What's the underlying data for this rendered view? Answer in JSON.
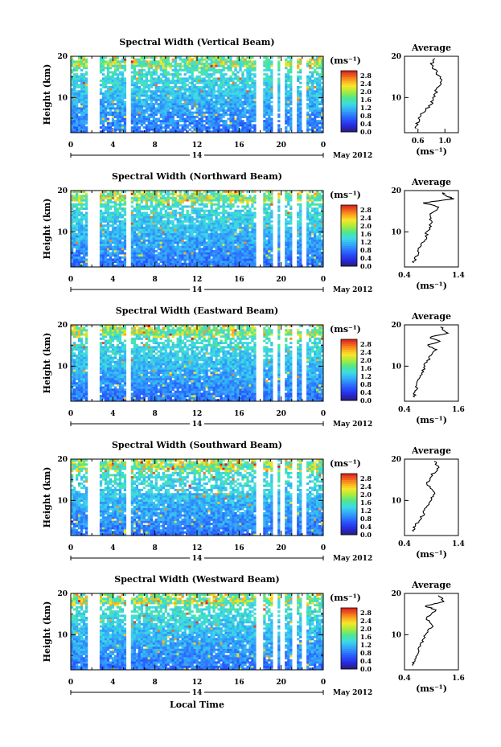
{
  "figure": {
    "month_label": "May 2012",
    "day_label": "14",
    "xlabel": "Local Time",
    "ylabel": "Height (km)",
    "unit_label": "(ms⁻¹)",
    "average_title": "Average",
    "average_xlabel": "(ms⁻¹)",
    "colorbar_ticks": [
      "2.8",
      "2.4",
      "2.0",
      "1.6",
      "1.2",
      "0.8",
      "0.4",
      "0.0"
    ],
    "x_ticks": [
      "0",
      "4",
      "8",
      "12",
      "16",
      "20",
      "0"
    ],
    "y_ticks": [
      "20",
      "10"
    ]
  },
  "chart_data": [
    {
      "type": "heatmap",
      "title": "Spectral Width (Vertical Beam)",
      "xlabel": "Local Time",
      "ylabel": "Height (km)",
      "xlim": [
        0,
        24
      ],
      "ylim": [
        1.5,
        20
      ],
      "zlim": [
        0.0,
        2.8
      ],
      "colorbar_unit": "ms⁻¹",
      "data_gaps_hours": [
        [
          1.6,
          2.8
        ],
        [
          5.3,
          5.8
        ],
        [
          17.6,
          18.2
        ],
        [
          19.2,
          19.6
        ],
        [
          19.9,
          20.4
        ],
        [
          21.0,
          21.5
        ],
        [
          21.9,
          22.4
        ]
      ],
      "average_profile": {
        "title": "Average",
        "xlabel": "(ms⁻¹)",
        "xlim": [
          0.4,
          1.2
        ],
        "x_ticks": [
          "0.6",
          "1.0"
        ],
        "height_km": [
          2.5,
          4,
          6,
          8,
          10,
          12,
          14,
          16,
          18,
          19.5
        ],
        "width_ms": [
          0.55,
          0.6,
          0.65,
          0.78,
          0.84,
          0.88,
          0.95,
          0.88,
          0.8,
          0.85
        ]
      }
    },
    {
      "type": "heatmap",
      "title": "Spectral Width (Northward Beam)",
      "xlabel": "Local Time",
      "ylabel": "Height (km)",
      "xlim": [
        0,
        24
      ],
      "ylim": [
        1.5,
        20
      ],
      "zlim": [
        0.0,
        2.8
      ],
      "colorbar_unit": "ms⁻¹",
      "data_gaps_hours": [
        [
          1.6,
          2.8
        ],
        [
          5.3,
          5.8
        ],
        [
          17.6,
          18.2
        ],
        [
          19.2,
          19.6
        ],
        [
          19.9,
          20.4
        ],
        [
          21.0,
          21.5
        ],
        [
          21.9,
          22.4
        ]
      ],
      "average_profile": {
        "title": "Average",
        "xlabel": "(ms⁻¹)",
        "xlim": [
          0.4,
          1.4
        ],
        "x_ticks": [
          "0.4",
          "1.4"
        ],
        "height_km": [
          2.5,
          4,
          6,
          8,
          10,
          12,
          14,
          16,
          17,
          18,
          19,
          19.5
        ],
        "width_ms": [
          0.55,
          0.62,
          0.68,
          0.78,
          0.82,
          0.9,
          0.85,
          1.05,
          0.75,
          1.3,
          1.15,
          1.1
        ]
      }
    },
    {
      "type": "heatmap",
      "title": "Spectral Width (Eastward Beam)",
      "xlabel": "Local Time",
      "ylabel": "Height (km)",
      "xlim": [
        0,
        24
      ],
      "ylim": [
        1.5,
        20
      ],
      "zlim": [
        0.0,
        2.8
      ],
      "colorbar_unit": "ms⁻¹",
      "data_gaps_hours": [
        [
          1.6,
          2.8
        ],
        [
          5.3,
          5.8
        ],
        [
          17.6,
          18.2
        ],
        [
          19.2,
          19.6
        ],
        [
          19.9,
          20.4
        ],
        [
          21.0,
          21.5
        ],
        [
          21.9,
          22.4
        ]
      ],
      "average_profile": {
        "title": "Average",
        "xlabel": "(ms⁻¹)",
        "xlim": [
          0.4,
          1.6
        ],
        "x_ticks": [
          "0.4",
          "1.6"
        ],
        "height_km": [
          2.5,
          4,
          6,
          8,
          10,
          12,
          14,
          15,
          16,
          17,
          18,
          19.5
        ],
        "width_ms": [
          0.6,
          0.65,
          0.7,
          0.78,
          0.85,
          0.95,
          1.1,
          0.9,
          1.2,
          0.95,
          1.35,
          1.2
        ]
      }
    },
    {
      "type": "heatmap",
      "title": "Spectral Width (Southward Beam)",
      "xlabel": "Local Time",
      "ylabel": "Height (km)",
      "xlim": [
        0,
        24
      ],
      "ylim": [
        1.5,
        20
      ],
      "zlim": [
        0.0,
        2.8
      ],
      "colorbar_unit": "ms⁻¹",
      "data_gaps_hours": [
        [
          1.6,
          2.8
        ],
        [
          5.3,
          5.8
        ],
        [
          17.6,
          18.2
        ],
        [
          19.2,
          19.6
        ],
        [
          19.9,
          20.4
        ],
        [
          21.0,
          21.5
        ],
        [
          21.9,
          22.4
        ]
      ],
      "average_profile": {
        "title": "Average",
        "xlabel": "(ms⁻¹)",
        "xlim": [
          0.4,
          1.4
        ],
        "x_ticks": [
          "0.4",
          "1.4"
        ],
        "height_km": [
          2.5,
          4,
          6,
          8,
          10,
          12,
          14,
          16,
          18,
          19.5
        ],
        "width_ms": [
          0.55,
          0.6,
          0.72,
          0.8,
          0.88,
          0.98,
          0.8,
          0.9,
          1.05,
          0.95
        ]
      }
    },
    {
      "type": "heatmap",
      "title": "Spectral Width (Westward Beam)",
      "xlabel": "Local Time",
      "ylabel": "Height (km)",
      "xlim": [
        0,
        24
      ],
      "ylim": [
        1.5,
        20
      ],
      "zlim": [
        0.0,
        2.8
      ],
      "colorbar_unit": "ms⁻¹",
      "data_gaps_hours": [
        [
          1.6,
          2.8
        ],
        [
          5.3,
          5.8
        ],
        [
          17.6,
          18.2
        ],
        [
          19.2,
          19.6
        ],
        [
          19.9,
          20.4
        ],
        [
          21.0,
          21.5
        ],
        [
          21.9,
          22.4
        ]
      ],
      "average_profile": {
        "title": "Average",
        "xlabel": "(ms⁻¹)",
        "xlim": [
          0.4,
          1.6
        ],
        "x_ticks": [
          "0.4",
          "1.6"
        ],
        "height_km": [
          2.5,
          4,
          6,
          8,
          10,
          12,
          14,
          16,
          17,
          18,
          19.5
        ],
        "width_ms": [
          0.58,
          0.62,
          0.7,
          0.78,
          0.88,
          1.0,
          0.9,
          1.1,
          0.85,
          1.3,
          1.15
        ]
      }
    }
  ]
}
